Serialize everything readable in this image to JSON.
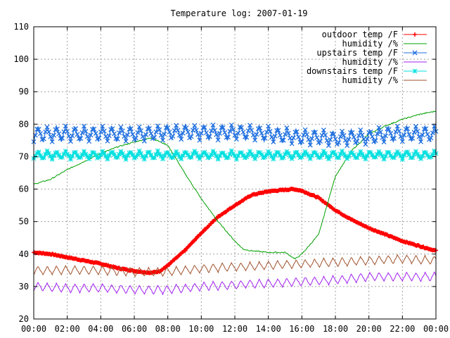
{
  "chart_data": {
    "type": "line",
    "title": "Temperature log: 2007-01-19",
    "xlabel": "",
    "ylabel": "",
    "xlim": [
      0,
      24
    ],
    "ylim": [
      20,
      110
    ],
    "grid": true,
    "legend_position": "top-right",
    "x_ticks": [
      "00:00",
      "02:00",
      "04:00",
      "06:00",
      "08:00",
      "10:00",
      "12:00",
      "14:00",
      "16:00",
      "18:00",
      "20:00",
      "22:00",
      "00:00"
    ],
    "y_ticks": [
      20,
      30,
      40,
      50,
      60,
      70,
      80,
      90,
      100,
      110
    ],
    "series": [
      {
        "name": "outdoor temp /F",
        "color": "#ff0000",
        "marker": "plus",
        "x": [
          0,
          1,
          2,
          3,
          4,
          5,
          6,
          7,
          7.5,
          8,
          9,
          10,
          11,
          12,
          13,
          14,
          15,
          15.5,
          16,
          17,
          18,
          19,
          20,
          21,
          22,
          23,
          24
        ],
        "y": [
          40.5,
          40,
          39,
          38,
          37,
          35.7,
          34.8,
          34.2,
          34.7,
          36.5,
          41,
          46.5,
          51.5,
          55,
          58.2,
          59.3,
          59.8,
          60,
          59.5,
          57.3,
          53.5,
          50.5,
          48,
          46,
          44,
          42.5,
          41
        ]
      },
      {
        "name": "humidity /%",
        "color": "#00a000",
        "marker": "none",
        "x": [
          0,
          1,
          2,
          3,
          4,
          5,
          6,
          7,
          8,
          9,
          10,
          11,
          12,
          12.5,
          13,
          14,
          15,
          15.6,
          16,
          16.5,
          17,
          17.5,
          18,
          19,
          20,
          21,
          22,
          23,
          24
        ],
        "y": [
          61.5,
          63,
          66,
          68.5,
          71,
          73,
          74.5,
          75.8,
          73.5,
          65,
          57,
          50,
          44,
          41.5,
          41,
          40.5,
          40.5,
          38.5,
          40,
          43,
          46,
          55,
          64,
          72,
          77,
          79.5,
          81.5,
          83,
          84
        ]
      },
      {
        "name": "upstairs temp /F",
        "color": "#1f6fdf",
        "marker": "x",
        "oscillating": true,
        "x": [
          0,
          2,
          4,
          6,
          8,
          10,
          12,
          13,
          14,
          15,
          16,
          17,
          18,
          19,
          20,
          21,
          22,
          23,
          24
        ],
        "y": [
          77,
          77,
          77,
          77,
          77.5,
          77.5,
          77.5,
          77.5,
          77,
          76.5,
          76,
          76,
          75.5,
          76,
          76,
          77,
          77,
          77,
          77
        ]
      },
      {
        "name": "humidity /%",
        "color": "#a020f0",
        "marker": "none",
        "oscillating": true,
        "x": [
          0,
          2,
          4,
          6,
          8,
          10,
          12,
          14,
          16,
          18,
          20,
          22,
          24
        ],
        "y": [
          30,
          29.5,
          29.5,
          29,
          29,
          30,
          30.5,
          31,
          31.5,
          32,
          33,
          33,
          33
        ]
      },
      {
        "name": "downstairs temp /F",
        "color": "#00e0e0",
        "marker": "star",
        "oscillating": true,
        "x": [
          0,
          2,
          4,
          6,
          8,
          10,
          12,
          14,
          16,
          18,
          20,
          22,
          24
        ],
        "y": [
          70.5,
          70.5,
          70.5,
          70.5,
          70.5,
          70.5,
          70.5,
          70.5,
          70.5,
          70.5,
          70.5,
          70.5,
          70.5
        ]
      },
      {
        "name": "humidity /%",
        "color": "#a0522d",
        "marker": "none",
        "oscillating": true,
        "x": [
          0,
          2,
          4,
          6,
          8,
          10,
          12,
          14,
          16,
          18,
          20,
          22,
          24
        ],
        "y": [
          35,
          35,
          35,
          34.5,
          34.5,
          35.5,
          36,
          36.5,
          37,
          37.5,
          38,
          38.5,
          38
        ]
      }
    ]
  }
}
